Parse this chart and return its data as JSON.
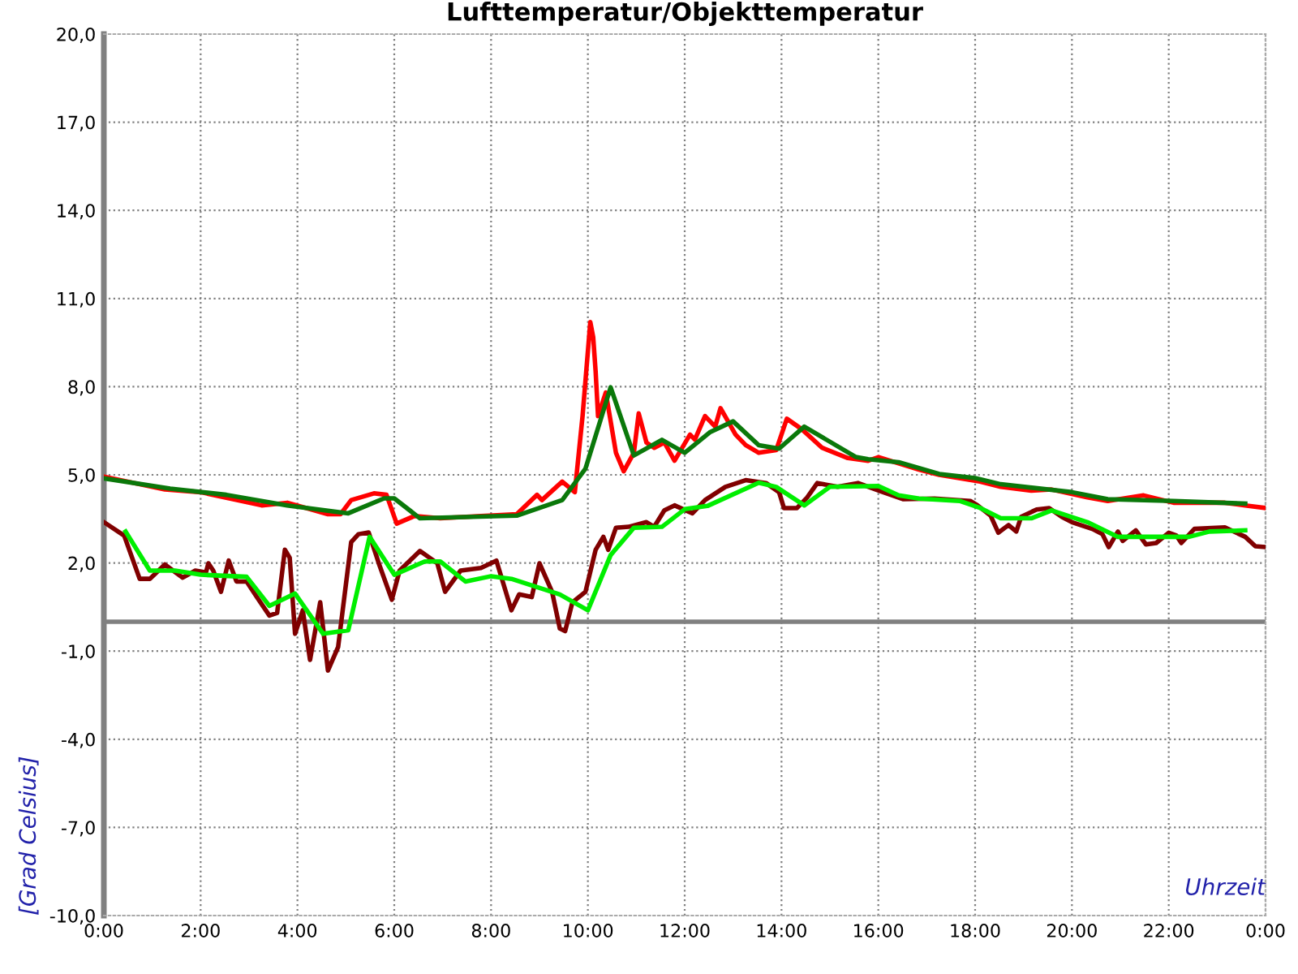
{
  "chart_data": {
    "type": "line",
    "title": "Lufttemperatur/Objekttemperatur",
    "xlabel": "Uhrzeit",
    "ylabel": "[Grad Celsius]",
    "xlim": [
      0,
      24
    ],
    "xticks": [
      {
        "value": 0,
        "label": "0:00"
      },
      {
        "value": 2,
        "label": "2:00"
      },
      {
        "value": 4,
        "label": "4:00"
      },
      {
        "value": 6,
        "label": "6:00"
      },
      {
        "value": 8,
        "label": "8:00"
      },
      {
        "value": 10,
        "label": "10:00"
      },
      {
        "value": 12,
        "label": "12:00"
      },
      {
        "value": 14,
        "label": "14:00"
      },
      {
        "value": 16,
        "label": "16:00"
      },
      {
        "value": 18,
        "label": "18:00"
      },
      {
        "value": 20,
        "label": "20:00"
      },
      {
        "value": 22,
        "label": "22:00"
      },
      {
        "value": 24,
        "label": "0:00"
      }
    ],
    "ylim": [
      -10,
      20
    ],
    "yticks": [
      {
        "value": -10,
        "label": "-10,0"
      },
      {
        "value": -7,
        "label": "-7,0"
      },
      {
        "value": -4,
        "label": "-4,0"
      },
      {
        "value": -1,
        "label": "-1,0"
      },
      {
        "value": 2,
        "label": "2,0"
      },
      {
        "value": 5,
        "label": "5,0"
      },
      {
        "value": 8,
        "label": "8,0"
      },
      {
        "value": 11,
        "label": "11,0"
      },
      {
        "value": 14,
        "label": "14,0"
      },
      {
        "value": 17,
        "label": "17,0"
      },
      {
        "value": 20,
        "label": "20,0"
      }
    ],
    "grid": true,
    "legend": false,
    "marker": "none",
    "line_style": "solid",
    "ref_lines": [
      {
        "axis": "y",
        "value": 0,
        "color": "#808080"
      }
    ],
    "series": [
      {
        "color": "#ff0000",
        "x": [
          0,
          1.26,
          2.0,
          3.26,
          3.79,
          4.63,
          4.89,
          5.11,
          5.58,
          5.84,
          6.05,
          6.42,
          6.95,
          7.79,
          8.21,
          8.53,
          8.95,
          9.05,
          9.47,
          9.73,
          9.89,
          10.05,
          10.11,
          10.16,
          10.21,
          10.37,
          10.58,
          10.74,
          10.95,
          11.05,
          11.21,
          11.37,
          11.58,
          11.79,
          12.11,
          12.21,
          12.42,
          12.63,
          12.74,
          13.05,
          13.26,
          13.53,
          13.89,
          14.11,
          14.42,
          14.84,
          15.37,
          15.79,
          16.0,
          16.42,
          16.84,
          17.26,
          18.1,
          18.53,
          19.16,
          19.58,
          20.32,
          20.74,
          21.48,
          22.1,
          23.16,
          23.58,
          24.0
        ],
        "values": [
          4.94,
          4.5,
          4.41,
          3.96,
          4.05,
          3.66,
          3.66,
          4.14,
          4.37,
          4.32,
          3.34,
          3.6,
          3.52,
          3.6,
          3.63,
          3.66,
          4.32,
          4.14,
          4.77,
          4.41,
          7.0,
          10.2,
          9.68,
          8.52,
          7.0,
          7.8,
          5.75,
          5.12,
          5.75,
          7.09,
          6.1,
          5.92,
          6.1,
          5.48,
          6.37,
          6.2,
          7.0,
          6.64,
          7.27,
          6.37,
          6.01,
          5.75,
          5.84,
          6.91,
          6.55,
          5.92,
          5.57,
          5.48,
          5.6,
          5.39,
          5.18,
          5.0,
          4.77,
          4.59,
          4.46,
          4.5,
          4.23,
          4.11,
          4.3,
          4.05,
          4.05,
          3.96,
          3.87
        ]
      },
      {
        "color": "#0a780a",
        "x": [
          0,
          1.37,
          2.53,
          3.79,
          5.05,
          5.79,
          6.0,
          6.53,
          8.21,
          8.53,
          9.47,
          9.95,
          10.47,
          10.95,
          11.53,
          12.0,
          12.53,
          13.0,
          13.53,
          13.95,
          14.47,
          15.53,
          15.79,
          16.42,
          17.26,
          18.0,
          18.53,
          20.0,
          20.74,
          22.1,
          23.58
        ],
        "values": [
          4.88,
          4.53,
          4.32,
          3.96,
          3.69,
          4.2,
          4.2,
          3.52,
          3.6,
          3.61,
          4.14,
          5.21,
          7.98,
          5.66,
          6.19,
          5.75,
          6.46,
          6.82,
          6.01,
          5.89,
          6.64,
          5.61,
          5.53,
          5.43,
          5.03,
          4.89,
          4.68,
          4.41,
          4.17,
          4.11,
          4.02
        ]
      },
      {
        "color": "#800000",
        "x": [
          0,
          0.42,
          0.74,
          0.95,
          1.26,
          1.63,
          1.89,
          2.11,
          2.16,
          2.26,
          2.42,
          2.58,
          2.74,
          2.95,
          3.16,
          3.42,
          3.58,
          3.74,
          3.84,
          3.95,
          4.11,
          4.26,
          4.47,
          4.63,
          4.84,
          5.11,
          5.26,
          5.47,
          5.68,
          5.95,
          6.11,
          6.53,
          6.89,
          7.05,
          7.37,
          7.79,
          8.11,
          8.42,
          8.58,
          8.84,
          9.0,
          9.26,
          9.42,
          9.53,
          9.68,
          9.95,
          10.16,
          10.32,
          10.42,
          10.58,
          10.84,
          11.21,
          11.37,
          11.58,
          11.79,
          12.16,
          12.42,
          12.84,
          13.26,
          13.68,
          13.95,
          14.05,
          14.32,
          14.53,
          14.74,
          15.16,
          15.58,
          16.1,
          16.52,
          17.16,
          17.9,
          18.05,
          18.32,
          18.48,
          18.69,
          18.85,
          18.95,
          19.27,
          19.53,
          19.79,
          20.0,
          20.42,
          20.63,
          20.76,
          20.95,
          21.05,
          21.32,
          21.53,
          21.74,
          22.0,
          22.16,
          22.26,
          22.53,
          23.16,
          23.58,
          23.79,
          24.0
        ],
        "values": [
          3.39,
          2.93,
          1.46,
          1.46,
          1.95,
          1.5,
          1.74,
          1.68,
          1.99,
          1.74,
          1.02,
          2.08,
          1.37,
          1.37,
          0.84,
          0.21,
          0.3,
          2.45,
          2.18,
          -0.41,
          0.39,
          -1.3,
          0.66,
          -1.66,
          -0.86,
          2.71,
          2.98,
          3.04,
          1.99,
          0.75,
          1.74,
          2.41,
          1.99,
          1.02,
          1.74,
          1.83,
          2.08,
          0.39,
          0.93,
          0.84,
          1.99,
          1.02,
          -0.23,
          -0.32,
          0.66,
          1.02,
          2.45,
          2.89,
          2.45,
          3.2,
          3.23,
          3.39,
          3.23,
          3.79,
          3.96,
          3.69,
          4.14,
          4.59,
          4.82,
          4.72,
          4.41,
          3.87,
          3.87,
          4.23,
          4.72,
          4.59,
          4.72,
          4.41,
          4.17,
          4.19,
          4.11,
          3.96,
          3.61,
          3.03,
          3.29,
          3.07,
          3.57,
          3.82,
          3.87,
          3.57,
          3.39,
          3.16,
          2.98,
          2.54,
          3.07,
          2.75,
          3.11,
          2.63,
          2.68,
          3.03,
          2.93,
          2.68,
          3.16,
          3.21,
          2.89,
          2.57,
          2.54
        ]
      },
      {
        "color": "#00ee00",
        "x": [
          0.45,
          0.95,
          1.47,
          2.0,
          2.95,
          3.42,
          3.95,
          4.53,
          5.05,
          5.49,
          6.0,
          6.63,
          6.95,
          7.47,
          8.0,
          8.42,
          9.42,
          10.0,
          10.47,
          10.95,
          11.53,
          12.0,
          12.47,
          13.53,
          13.89,
          14.47,
          15.0,
          16.0,
          16.42,
          16.84,
          17.68,
          18.11,
          18.53,
          19.16,
          19.58,
          20.32,
          20.95,
          21.69,
          22.42,
          22.84,
          23.58
        ],
        "values": [
          3.07,
          1.74,
          1.74,
          1.6,
          1.53,
          0.54,
          0.96,
          -0.41,
          -0.29,
          2.89,
          1.6,
          2.05,
          2.05,
          1.37,
          1.55,
          1.46,
          0.93,
          0.39,
          2.27,
          3.2,
          3.23,
          3.83,
          3.94,
          4.73,
          4.59,
          3.96,
          4.59,
          4.62,
          4.3,
          4.19,
          4.11,
          3.87,
          3.52,
          3.52,
          3.79,
          3.39,
          2.89,
          2.89,
          2.89,
          3.07,
          3.11
        ]
      }
    ]
  }
}
